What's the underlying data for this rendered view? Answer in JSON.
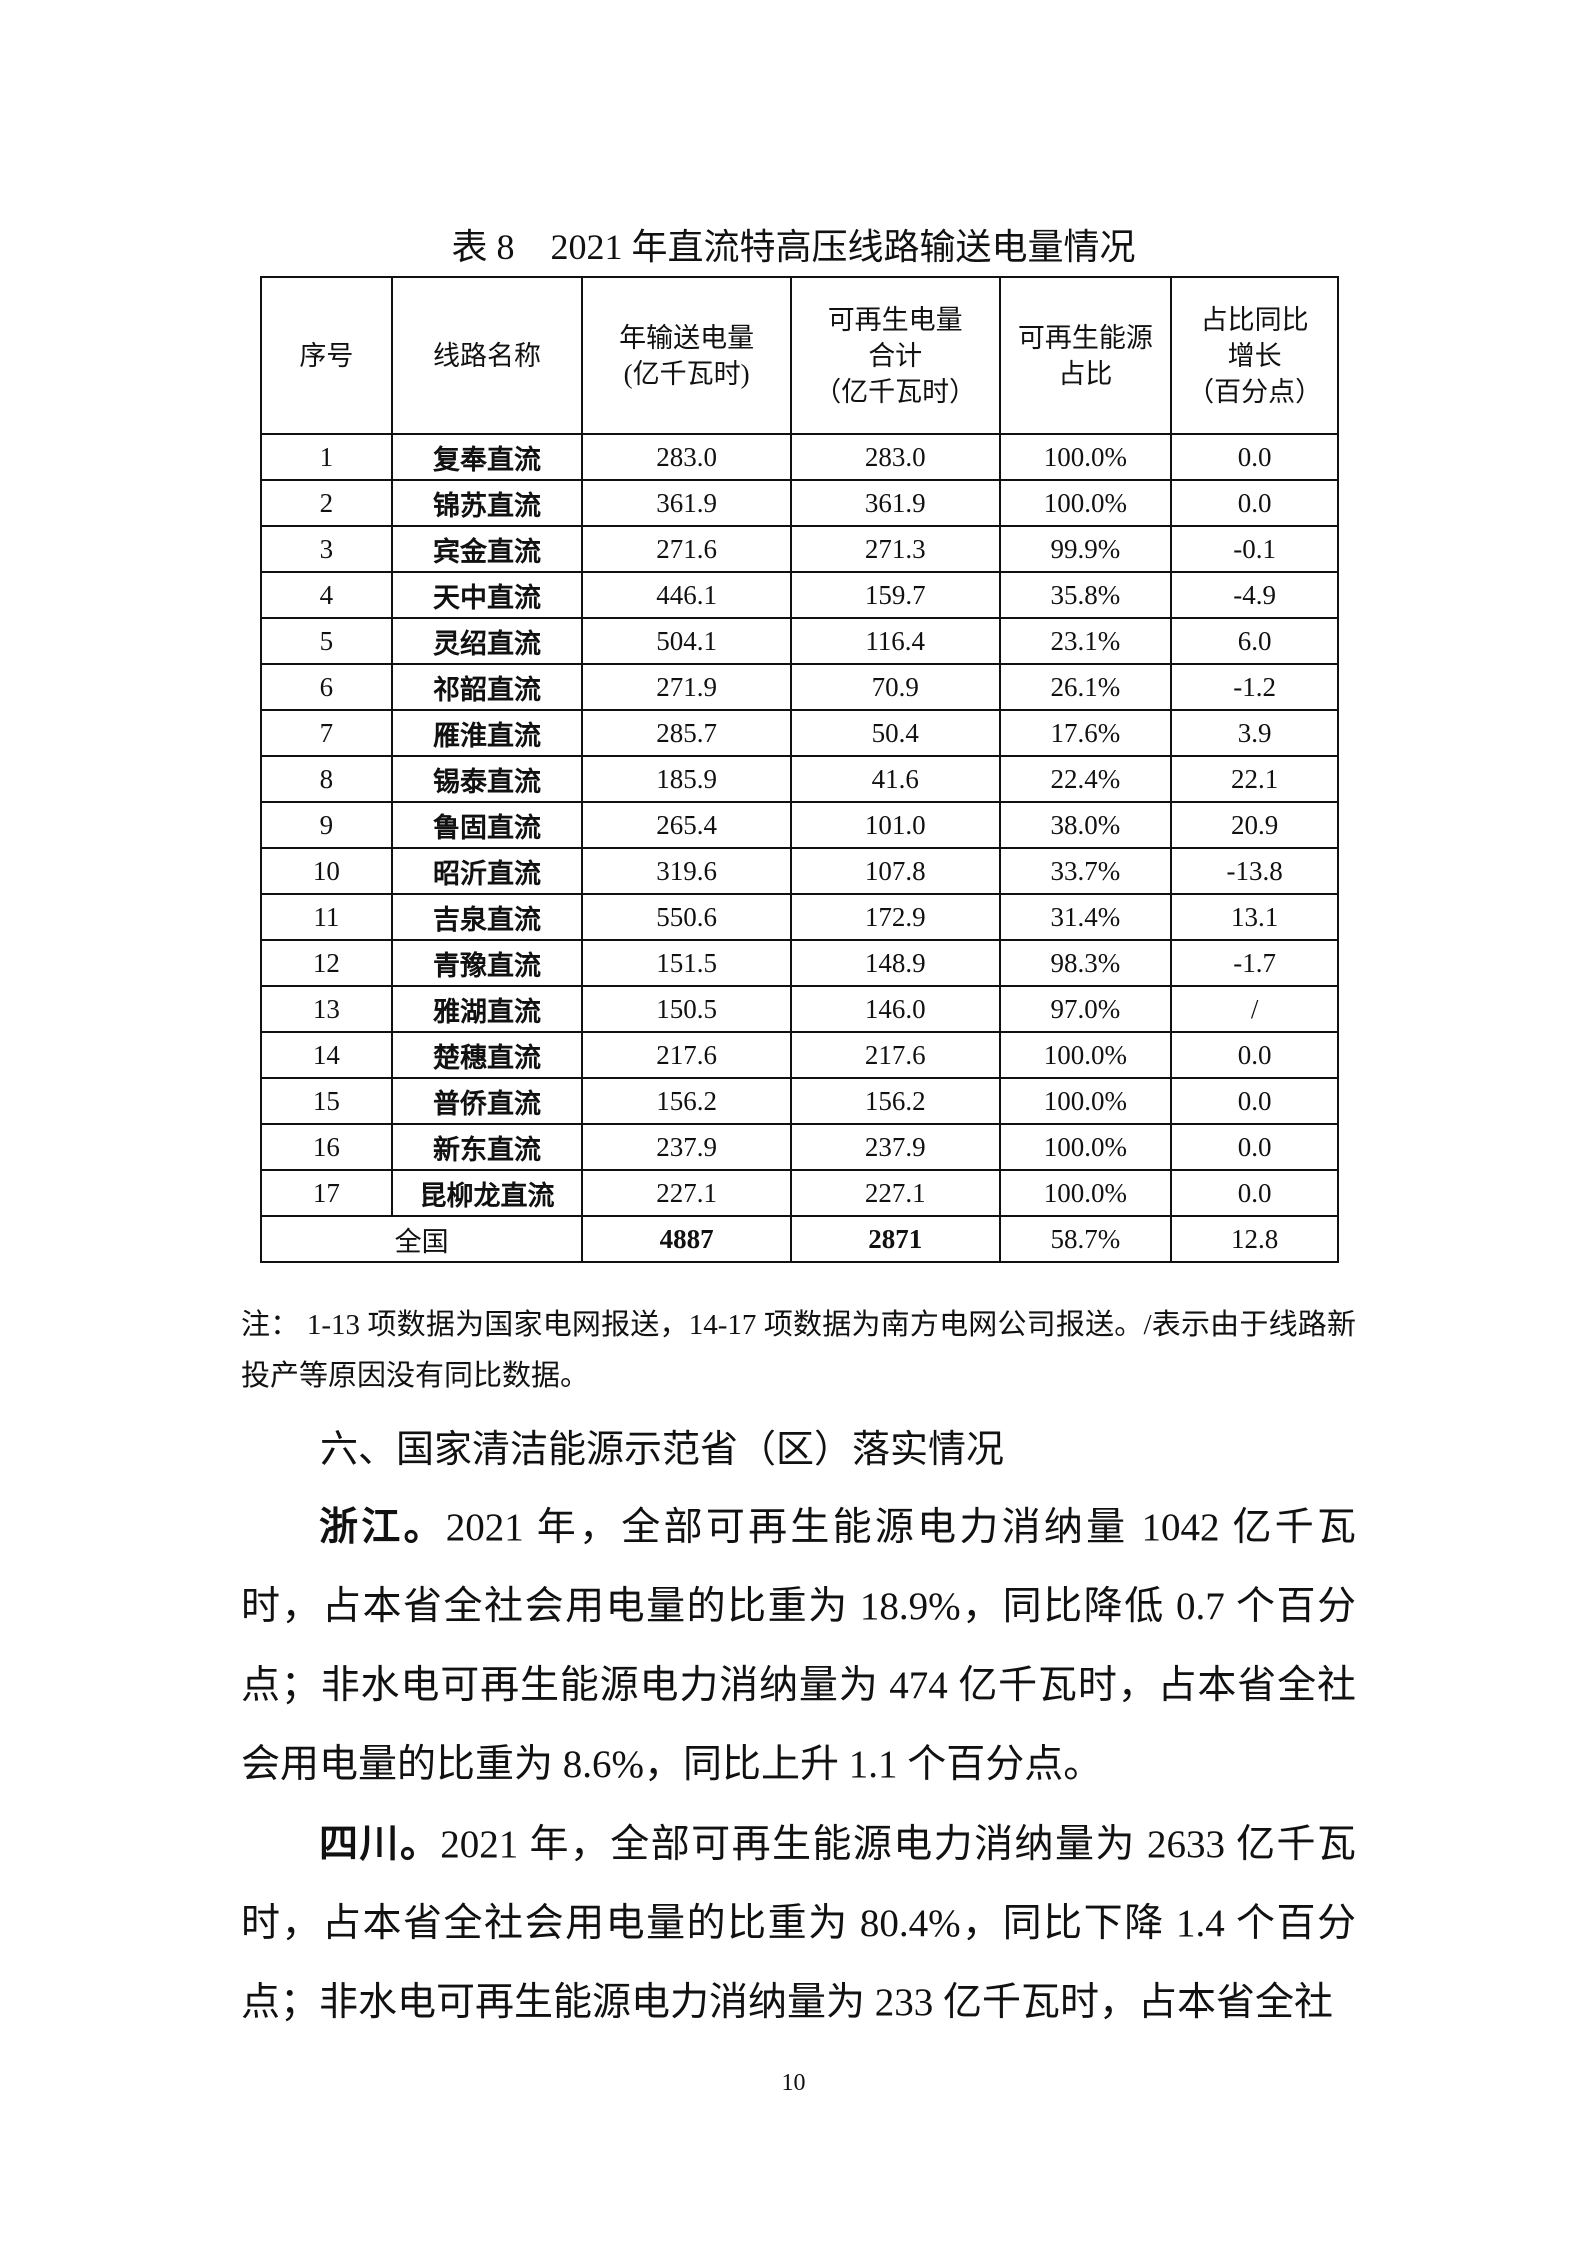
{
  "table": {
    "title": "表 8　2021 年直流特高压线路输送电量情况",
    "headers": [
      "序号",
      "线路名称",
      "年输送电量\n(亿千瓦时)",
      "可再生电量\n合计\n（亿千瓦时）",
      "可再生能源\n占比",
      "占比同比\n增长\n（百分点）"
    ],
    "rows": [
      [
        "1",
        "复奉直流",
        "283.0",
        "283.0",
        "100.0%",
        "0.0"
      ],
      [
        "2",
        "锦苏直流",
        "361.9",
        "361.9",
        "100.0%",
        "0.0"
      ],
      [
        "3",
        "宾金直流",
        "271.6",
        "271.3",
        "99.9%",
        "-0.1"
      ],
      [
        "4",
        "天中直流",
        "446.1",
        "159.7",
        "35.8%",
        "-4.9"
      ],
      [
        "5",
        "灵绍直流",
        "504.1",
        "116.4",
        "23.1%",
        "6.0"
      ],
      [
        "6",
        "祁韶直流",
        "271.9",
        "70.9",
        "26.1%",
        "-1.2"
      ],
      [
        "7",
        "雁淮直流",
        "285.7",
        "50.4",
        "17.6%",
        "3.9"
      ],
      [
        "8",
        "锡泰直流",
        "185.9",
        "41.6",
        "22.4%",
        "22.1"
      ],
      [
        "9",
        "鲁固直流",
        "265.4",
        "101.0",
        "38.0%",
        "20.9"
      ],
      [
        "10",
        "昭沂直流",
        "319.6",
        "107.8",
        "33.7%",
        "-13.8"
      ],
      [
        "11",
        "吉泉直流",
        "550.6",
        "172.9",
        "31.4%",
        "13.1"
      ],
      [
        "12",
        "青豫直流",
        "151.5",
        "148.9",
        "98.3%",
        "-1.7"
      ],
      [
        "13",
        "雅湖直流",
        "150.5",
        "146.0",
        "97.0%",
        "/"
      ],
      [
        "14",
        "楚穗直流",
        "217.6",
        "217.6",
        "100.0%",
        "0.0"
      ],
      [
        "15",
        "普侨直流",
        "156.2",
        "156.2",
        "100.0%",
        "0.0"
      ],
      [
        "16",
        "新东直流",
        "237.9",
        "237.9",
        "100.0%",
        "0.0"
      ],
      [
        "17",
        "昆柳龙直流",
        "227.1",
        "227.1",
        "100.0%",
        "0.0"
      ]
    ],
    "total": [
      "全国",
      "4887",
      "2871",
      "58.7%",
      "12.8"
    ]
  },
  "note": "注：  1-13 项数据为国家电网报送，14-17 项数据为南方电网公司报送。/表示由于线路新投产等原因没有同比数据。",
  "section_heading": "六、国家清洁能源示范省（区）落实情况",
  "paragraphs": [
    {
      "lead": "浙江。",
      "text": "2021 年，全部可再生能源电力消纳量 1042 亿千瓦时，占本省全社会用电量的比重为 18.9%，同比降低 0.7 个百分点；非水电可再生能源电力消纳量为 474 亿千瓦时，占本省全社会用电量的比重为 8.6%，同比上升 1.1 个百分点。"
    },
    {
      "lead": "四川。",
      "text": "2021 年，全部可再生能源电力消纳量为 2633 亿千瓦时，占本省全社会用电量的比重为 80.4%，同比下降 1.4 个百分点；非水电可再生能源电力消纳量为 233 亿千瓦时，占本省全社"
    }
  ],
  "page_number": "10"
}
